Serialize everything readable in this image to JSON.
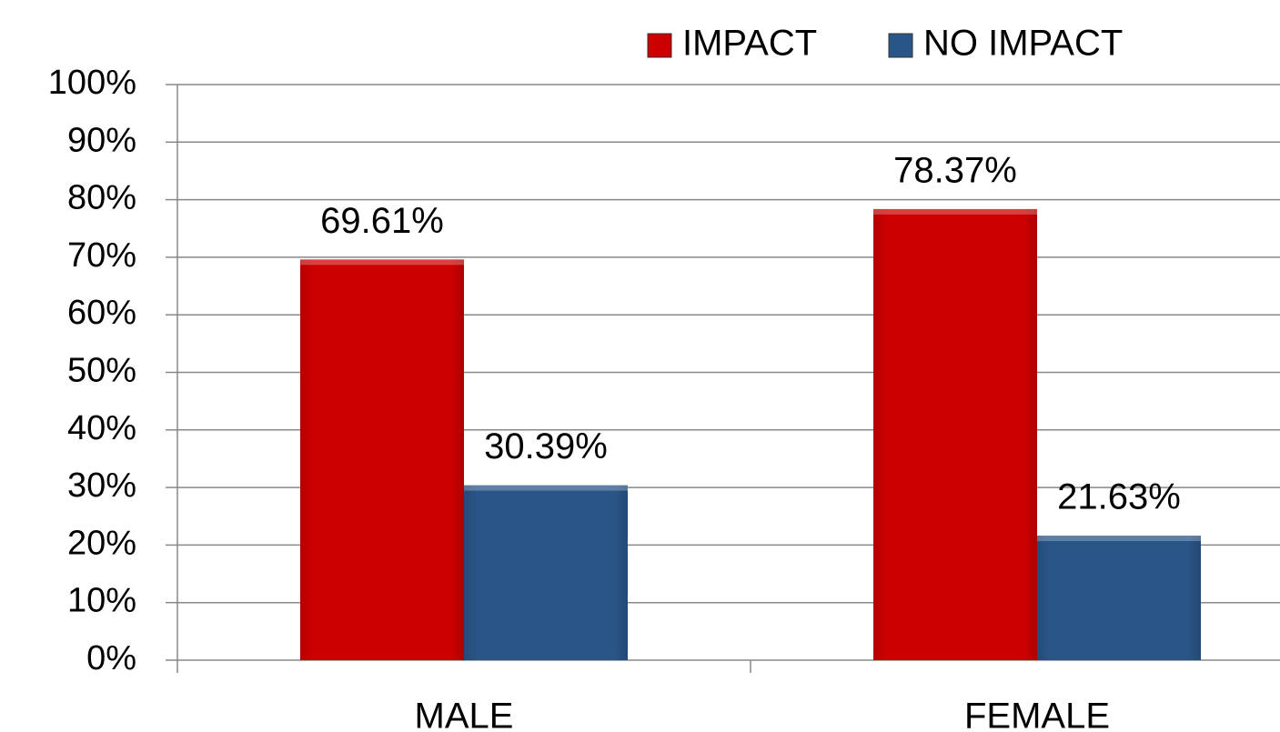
{
  "chart_data": {
    "type": "bar",
    "categories": [
      "MALE",
      "FEMALE"
    ],
    "series": [
      {
        "name": "IMPACT",
        "color": "#cc0000",
        "values": [
          69.61,
          78.37
        ],
        "value_labels": [
          "69.61%",
          "78.37%"
        ]
      },
      {
        "name": "NO IMPACT",
        "color": "#2a5587",
        "values": [
          30.39,
          21.63
        ],
        "value_labels": [
          "30.39%",
          "21.63%"
        ]
      }
    ],
    "ylim": [
      0,
      100
    ],
    "yticks": [
      {
        "value": 0,
        "label": "0%"
      },
      {
        "value": 10,
        "label": "10%"
      },
      {
        "value": 20,
        "label": "20%"
      },
      {
        "value": 30,
        "label": "30%"
      },
      {
        "value": 40,
        "label": "40%"
      },
      {
        "value": 50,
        "label": "50%"
      },
      {
        "value": 60,
        "label": "60%"
      },
      {
        "value": 70,
        "label": "70%"
      },
      {
        "value": 80,
        "label": "80%"
      },
      {
        "value": 90,
        "label": "90%"
      },
      {
        "value": 100,
        "label": "100%"
      }
    ],
    "grid": true,
    "legend": "top"
  }
}
